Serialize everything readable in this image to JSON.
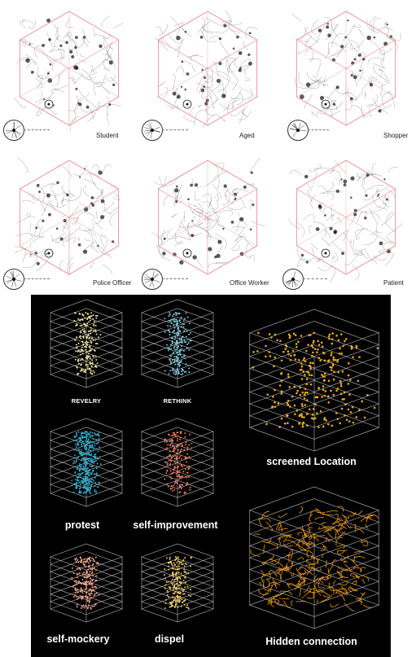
{
  "top_section": {
    "cubes": [
      {
        "label": "Student"
      },
      {
        "label": "Aged"
      },
      {
        "label": "Shopper"
      },
      {
        "label": "Police Officer"
      },
      {
        "label": "Office Worker"
      },
      {
        "label": "Patient"
      }
    ]
  },
  "bottom_section": {
    "small_stacks": [
      {
        "label": "REVELRY",
        "color": "#f2e6a0"
      },
      {
        "label": "RETHINK",
        "color": "#7fd3e6"
      },
      {
        "label": "protest",
        "color": "#2fa9c9"
      },
      {
        "label": "self-improvement",
        "color": "#f0785a"
      },
      {
        "label": "self-mockery",
        "color": "#f5a68a"
      },
      {
        "label": "dispel",
        "color": "#f2d060"
      }
    ],
    "big_stacks": [
      {
        "label": "screened Location",
        "color": "#f2b21a"
      },
      {
        "label": "Hidden connection",
        "color": "#f29b0c"
      }
    ]
  },
  "colors": {
    "cube_frame": "#e8868e",
    "network": "#3a3a3a",
    "dark_background": "#000000"
  }
}
